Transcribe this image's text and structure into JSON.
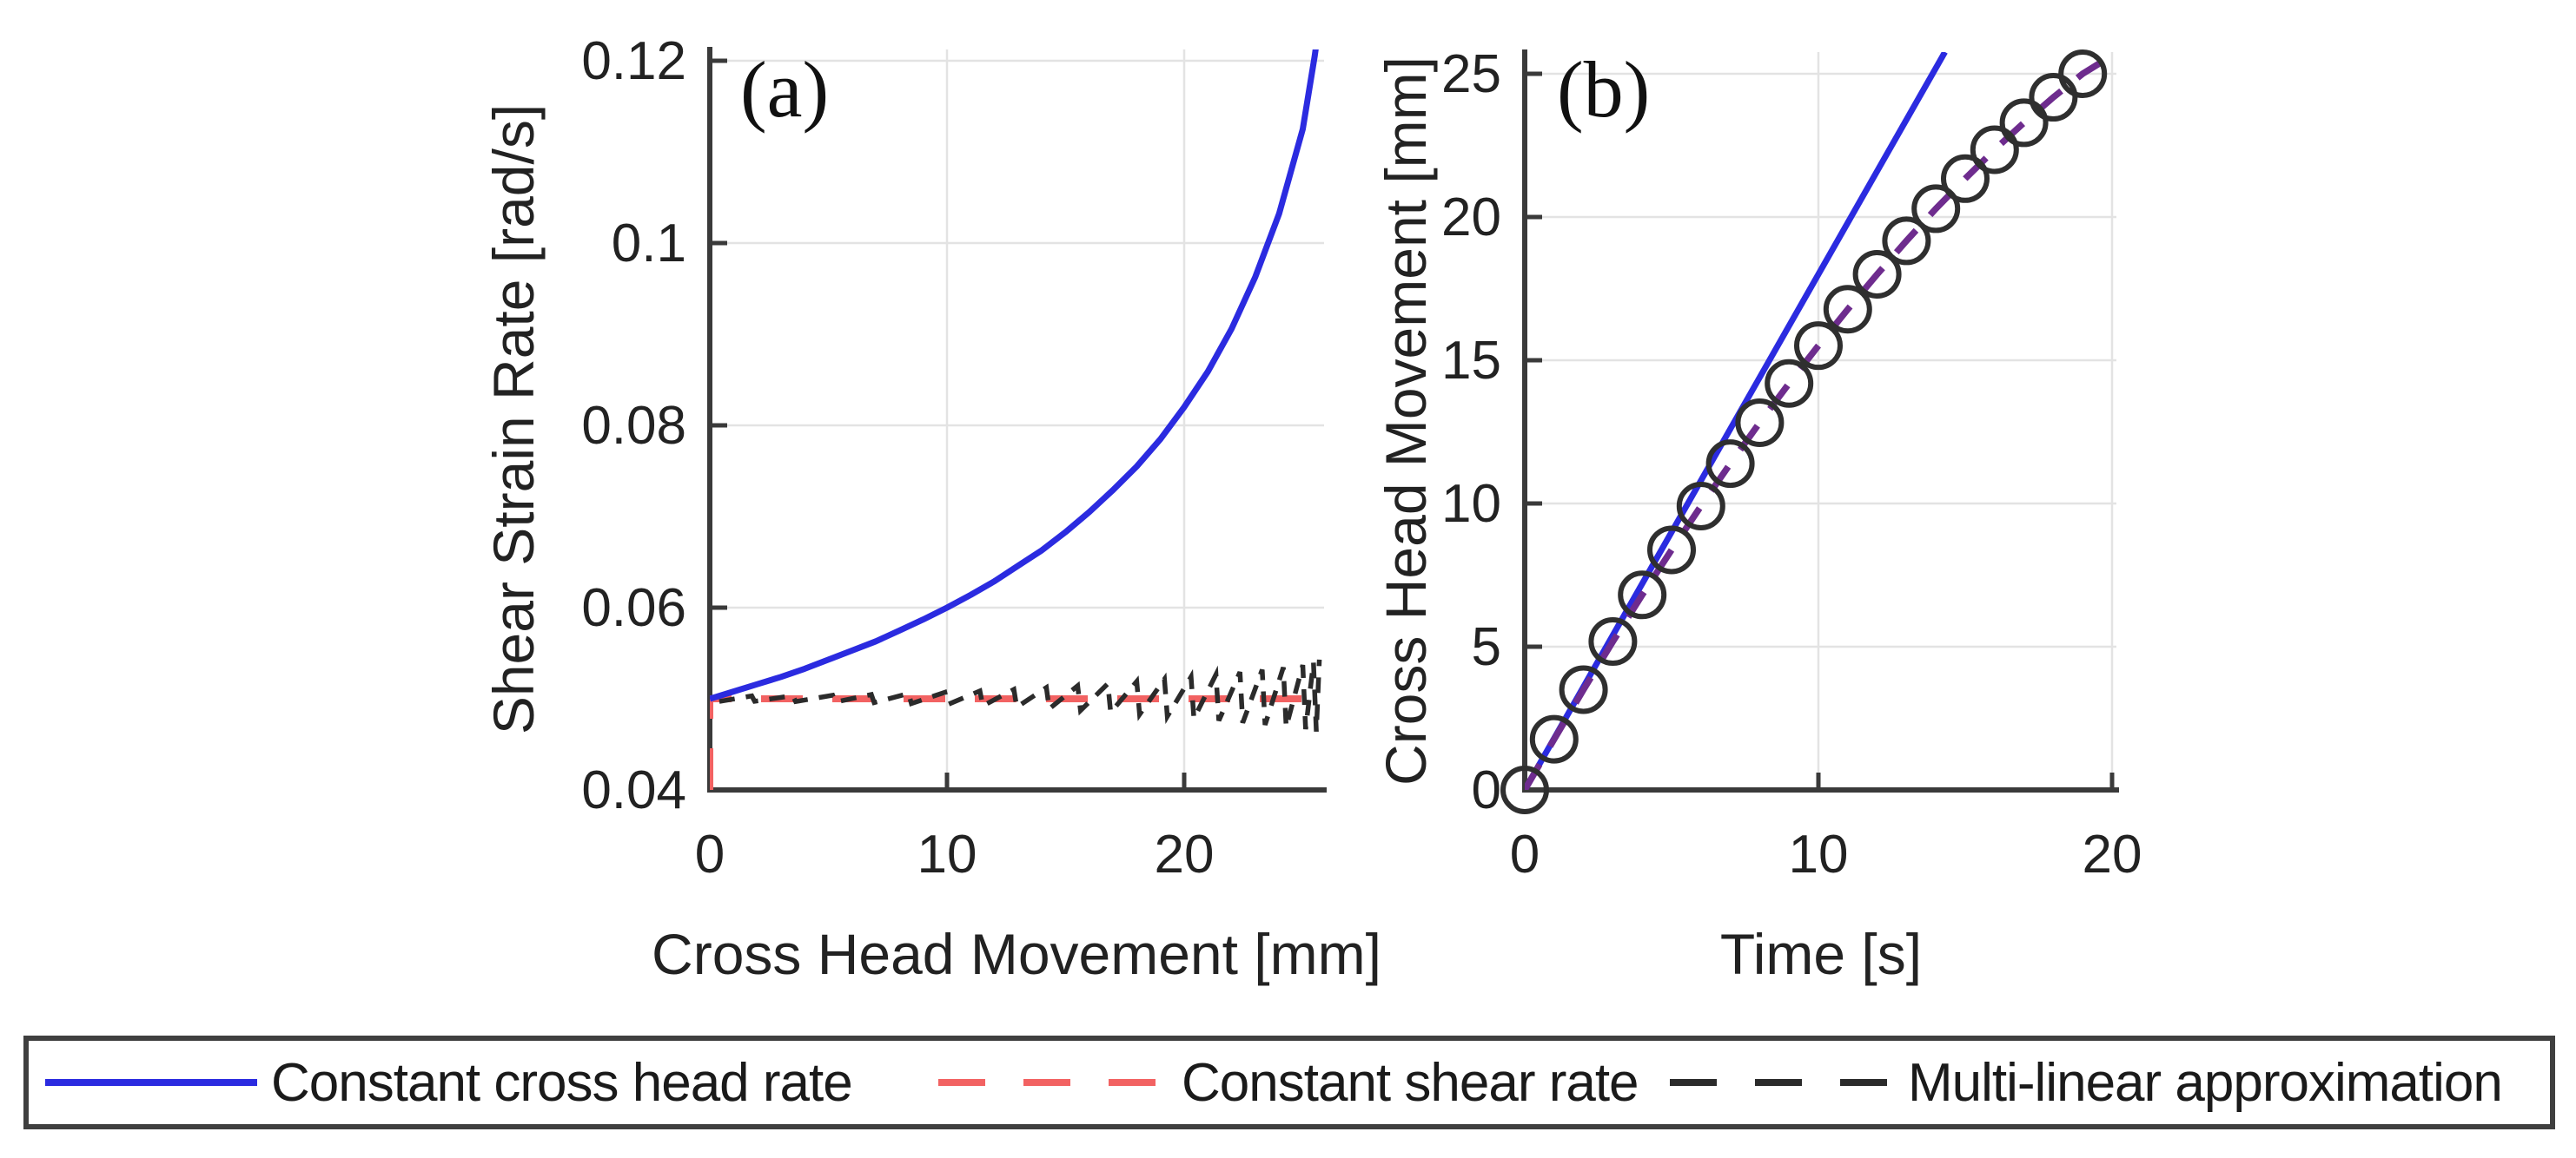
{
  "figure": {
    "background": "#ffffff",
    "colors": {
      "grid": "#e3e3e3",
      "spine": "#3a3a3a",
      "text": "#222222",
      "blue": "#2b2be0",
      "red": "#f26262",
      "black_dash": "#2b2b2b",
      "purple": "#6e2c8e",
      "marker_stroke": "#2f2f2f"
    },
    "legend": {
      "border_color": "#3f3f3f",
      "items": [
        {
          "label": "Constant cross head rate",
          "color": "#2b2be0",
          "line_style": "solid"
        },
        {
          "label": "Constant shear rate",
          "color": "#f26262",
          "line_style": "dashed"
        },
        {
          "label": "Multi-linear approximation",
          "color": "#2b2b2b",
          "line_style": "dashed"
        }
      ]
    }
  },
  "chart_data": [
    {
      "panel_label": "(a)",
      "type": "line",
      "xlabel": "Cross Head Movement [mm]",
      "ylabel": "Shear Strain Rate [rad/s]",
      "xlim": [
        0,
        25.9
      ],
      "ylim": [
        0.04,
        0.1212
      ],
      "grid": true,
      "xtick_values": [
        0,
        10,
        20
      ],
      "xtick_labels": [
        "0",
        "10",
        "20"
      ],
      "ytick_values": [
        0.04,
        0.06,
        0.08,
        0.1,
        0.12
      ],
      "ytick_labels": [
        "0.04",
        "0.06",
        "0.08",
        "0.1",
        "0.12"
      ],
      "series": [
        {
          "name": "Constant cross head rate",
          "style": "solid",
          "color": "#2b2be0",
          "x": [
            0,
            1,
            2,
            3,
            4,
            5,
            6,
            7,
            8,
            9,
            10,
            11,
            12,
            13,
            14,
            15,
            16,
            17,
            18,
            19,
            20,
            21,
            22,
            23,
            24,
            25,
            25.5,
            25.9
          ],
          "y": [
            0.05,
            0.0508,
            0.0516,
            0.0524,
            0.0533,
            0.0543,
            0.0553,
            0.0563,
            0.0575,
            0.0587,
            0.06,
            0.0614,
            0.0629,
            0.0646,
            0.0663,
            0.0683,
            0.0705,
            0.0729,
            0.0755,
            0.0785,
            0.082,
            0.0859,
            0.0906,
            0.0963,
            0.1032,
            0.1125,
            0.1205,
            0.128
          ]
        },
        {
          "name": "Constant shear rate",
          "style": "dashed",
          "color": "#f26262",
          "x": [
            0,
            0,
            25.9
          ],
          "y": [
            0.04,
            0.05,
            0.05
          ]
        },
        {
          "name": "Multi-linear approximation",
          "style": "dashed",
          "color": "#2b2b2b",
          "shape": "sawtooth about base value",
          "base": 0.05,
          "nodes": [
            0.4,
            1.77,
            3.5,
            5.18,
            6.81,
            8.38,
            9.91,
            11.39,
            12.82,
            14.19,
            15.51,
            16.78,
            18.0,
            19.17,
            20.29,
            21.34,
            22.35,
            23.29,
            24.18,
            25.0,
            25.45,
            25.7
          ],
          "amplitudes": [
            0.0003,
            0.00031,
            0.00034,
            0.00039,
            0.00047,
            0.00058,
            0.0007,
            0.00086,
            0.00103,
            0.00123,
            0.00143,
            0.00166,
            0.0019,
            0.00215,
            0.00241,
            0.00267,
            0.00293,
            0.00319,
            0.00345,
            0.0037,
            0.004,
            0.0043
          ]
        }
      ]
    },
    {
      "panel_label": "(b)",
      "type": "line",
      "xlabel": "Time [s]",
      "ylabel": "Cross Head Movement [mm]",
      "xlim": [
        0,
        20.15
      ],
      "ylim": [
        0,
        25.75
      ],
      "grid": true,
      "xtick_values": [
        0,
        10,
        20
      ],
      "xtick_labels": [
        "0",
        "10",
        "20"
      ],
      "ytick_values": [
        0,
        5,
        10,
        15,
        20,
        25
      ],
      "ytick_labels": [
        "0",
        "5",
        "10",
        "15",
        "20",
        "25"
      ],
      "series": [
        {
          "name": "Constant cross head rate",
          "style": "solid",
          "color": "#2b2be0",
          "x": [
            0,
            14.31
          ],
          "y": [
            0,
            25.76
          ]
        },
        {
          "name": "Constant shear rate / Multi-linear approximation (overlapping dashes)",
          "style": "dashed",
          "color": "#6e2c8e",
          "x": [
            0,
            1,
            2,
            3,
            4,
            5,
            6,
            7,
            8,
            9,
            10,
            11,
            12,
            13,
            14,
            15,
            16,
            17,
            18,
            19,
            20.1
          ],
          "y": [
            0,
            1.77,
            3.5,
            5.18,
            6.81,
            8.38,
            9.91,
            11.39,
            12.82,
            14.19,
            15.51,
            16.78,
            18.0,
            19.17,
            20.29,
            21.34,
            22.35,
            23.29,
            24.18,
            25.0,
            25.7
          ]
        },
        {
          "name": "Multi-linear approximation nodes",
          "marker": "circle",
          "color": "#2f2f2f",
          "x": [
            0,
            1,
            2,
            3,
            4,
            5,
            6,
            7,
            8,
            9,
            10,
            11,
            12,
            13,
            14,
            15,
            16,
            17,
            18,
            19
          ],
          "y": [
            0,
            1.77,
            3.5,
            5.18,
            6.81,
            8.38,
            9.91,
            11.39,
            12.82,
            14.19,
            15.51,
            16.78,
            18.0,
            19.17,
            20.29,
            21.34,
            22.35,
            23.29,
            24.18,
            25.0
          ]
        }
      ]
    }
  ]
}
